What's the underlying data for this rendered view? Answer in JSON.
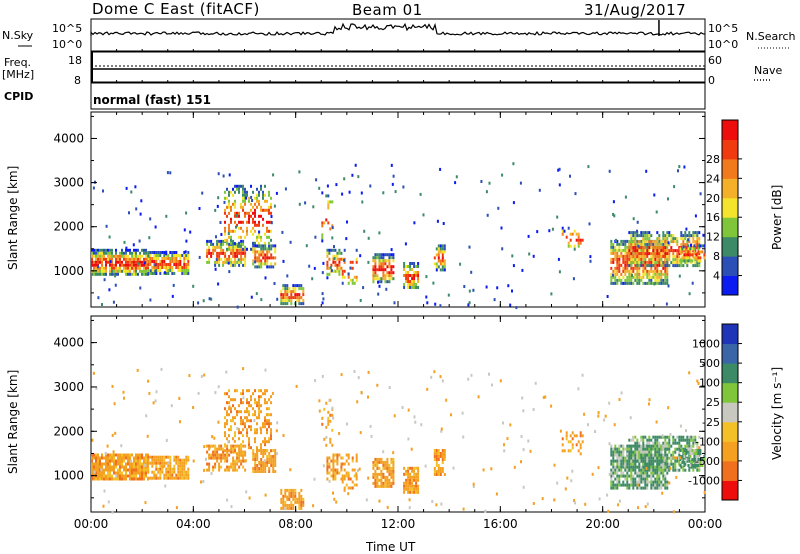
{
  "header": {
    "station": "Dome C East (fitACF)",
    "beam": "Beam 01",
    "date": "31/Aug/2017"
  },
  "labels": {
    "nsky": "N.Sky",
    "nsearch": "N.Search",
    "freq": "Freq.",
    "freq_unit": "[MHz]",
    "nave": "Nave",
    "cpid": "CPID",
    "cpid_value": "normal (fast) 151",
    "y_label": "Slant Range [km]",
    "x_label": "Time UT",
    "power_label": "Power [dB]",
    "velocity_label": "Velocity [m s⁻¹]"
  },
  "top_axes": {
    "nsky_ticks": [
      "10^5",
      "10^0"
    ],
    "nsearch_ticks": [
      "10^5",
      "10^0"
    ],
    "freq_ticks": [
      "18",
      "8"
    ],
    "nave_ticks": [
      "60",
      "0"
    ]
  },
  "chart_data": {
    "type": "heatmap",
    "x": [
      "00:00",
      "04:00",
      "08:00",
      "12:00",
      "16:00",
      "20:00",
      "00:00"
    ],
    "xlabel": "Time UT",
    "ylabel": "Slant Range [km]",
    "y_ticks": [
      "1000",
      "2000",
      "3000",
      "4000"
    ],
    "ylim": [
      180,
      4600
    ],
    "panels": [
      {
        "name": "Power [dB]",
        "colorbar_ticks": [
          "4",
          "8",
          "12",
          "16",
          "20",
          "24",
          "28"
        ],
        "colors": [
          "#0c1cf0",
          "#2b4fb6",
          "#3d8a66",
          "#80c63a",
          "#f4e52c",
          "#f4b028",
          "#f07a1c",
          "#f03a10",
          "#ee0d0d"
        ]
      },
      {
        "name": "Velocity [m s⁻¹]",
        "colorbar_ticks": [
          "1000",
          "500",
          "100",
          "25",
          "-25",
          "-100",
          "-500",
          "-1000"
        ],
        "colors": [
          "#1f35b8",
          "#3a66a8",
          "#3d8a66",
          "#80c63a",
          "#c8c8c0",
          "#f4c028",
          "#f4a020",
          "#f07020",
          "#ee0d0d"
        ]
      }
    ]
  }
}
